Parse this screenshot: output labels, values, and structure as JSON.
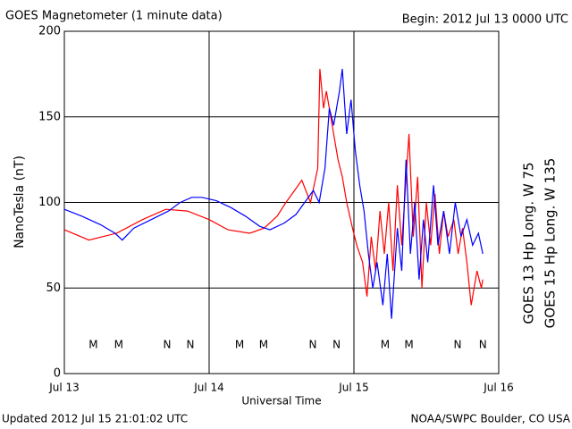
{
  "chart_data": {
    "type": "line",
    "title": "GOES Magnetometer (1 minute data)",
    "subtitle": "Begin:  2012 Jul 13 0000 UTC",
    "ylabel": "NanoTesla (nT)",
    "xlabel": "Universal Time",
    "footer_left": "Updated 2012 Jul 15 21:01:02 UTC",
    "footer_right": "NOAA/SWPC Boulder, CO USA",
    "xlim": [
      0,
      3
    ],
    "xticks": [
      {
        "value": 0,
        "label": "Jul 13"
      },
      {
        "value": 1,
        "label": "Jul 14"
      },
      {
        "value": 2,
        "label": "Jul 15"
      },
      {
        "value": 3,
        "label": "Jul 16"
      }
    ],
    "ylim": [
      0,
      200
    ],
    "yticks": [
      0,
      50,
      100,
      150,
      200
    ],
    "grid": true,
    "series": [
      {
        "name": "GOES 13 Hp  Long. W 75",
        "color": "#ff0000",
        "x": [
          0,
          0.17,
          0.36,
          0.54,
          0.7,
          0.85,
          1.0,
          1.13,
          1.28,
          1.38,
          1.47,
          1.53,
          1.59,
          1.64,
          1.7,
          1.75,
          1.765,
          1.79,
          1.81,
          1.85,
          1.89,
          1.92,
          1.95,
          1.99,
          2.02,
          2.06,
          2.09,
          2.12,
          2.15,
          2.18,
          2.21,
          2.24,
          2.27,
          2.3,
          2.33,
          2.38,
          2.41,
          2.44,
          2.47,
          2.5,
          2.53,
          2.56,
          2.59,
          2.62,
          2.65,
          2.69,
          2.72,
          2.75,
          2.78,
          2.81,
          2.85,
          2.88,
          2.89
        ],
        "values": [
          84,
          78,
          82,
          90,
          96,
          95,
          90,
          84,
          82,
          85,
          92,
          100,
          107,
          113,
          100,
          120,
          178,
          155,
          165,
          145,
          125,
          115,
          100,
          85,
          75,
          65,
          45,
          80,
          60,
          95,
          70,
          100,
          60,
          110,
          75,
          140,
          80,
          115,
          50,
          100,
          75,
          105,
          70,
          95,
          80,
          90,
          70,
          85,
          65,
          40,
          60,
          50,
          55
        ]
      },
      {
        "name": "GOES 15 Hp  Long. W 135",
        "color": "#0000ff",
        "x": [
          0,
          0.12,
          0.25,
          0.35,
          0.4,
          0.48,
          0.6,
          0.72,
          0.8,
          0.88,
          0.95,
          1.05,
          1.15,
          1.25,
          1.35,
          1.42,
          1.52,
          1.6,
          1.66,
          1.72,
          1.76,
          1.8,
          1.83,
          1.86,
          1.9,
          1.92,
          1.95,
          1.98,
          2.01,
          2.04,
          2.07,
          2.1,
          2.13,
          2.16,
          2.2,
          2.23,
          2.26,
          2.3,
          2.33,
          2.36,
          2.39,
          2.42,
          2.45,
          2.48,
          2.51,
          2.55,
          2.58,
          2.62,
          2.66,
          2.7,
          2.74,
          2.78,
          2.82,
          2.86,
          2.89
        ],
        "values": [
          96,
          92,
          87,
          82,
          78,
          85,
          90,
          95,
          100,
          103,
          103,
          101,
          97,
          92,
          86,
          84,
          88,
          93,
          100,
          107,
          100,
          120,
          155,
          145,
          165,
          178,
          140,
          160,
          130,
          110,
          95,
          70,
          50,
          65,
          40,
          70,
          32,
          85,
          60,
          125,
          70,
          100,
          55,
          90,
          65,
          110,
          75,
          95,
          70,
          100,
          80,
          90,
          75,
          82,
          70
        ]
      }
    ],
    "annotations": [
      {
        "text": "M",
        "x": 0.2,
        "color": "#ff0000"
      },
      {
        "text": "M",
        "x": 0.375,
        "color": "#0000ff"
      },
      {
        "text": "N",
        "x": 0.71,
        "color": "#ff0000"
      },
      {
        "text": "N",
        "x": 0.87,
        "color": "#0000ff"
      },
      {
        "text": "M",
        "x": 1.21,
        "color": "#ff0000"
      },
      {
        "text": "M",
        "x": 1.376,
        "color": "#0000ff"
      },
      {
        "text": "N",
        "x": 1.716,
        "color": "#ff0000"
      },
      {
        "text": "N",
        "x": 1.88,
        "color": "#0000ff"
      },
      {
        "text": "M",
        "x": 2.216,
        "color": "#ff0000"
      },
      {
        "text": "M",
        "x": 2.38,
        "color": "#0000ff"
      },
      {
        "text": "N",
        "x": 2.716,
        "color": "#ff0000"
      },
      {
        "text": "N",
        "x": 2.89,
        "color": "#0000ff"
      }
    ]
  }
}
